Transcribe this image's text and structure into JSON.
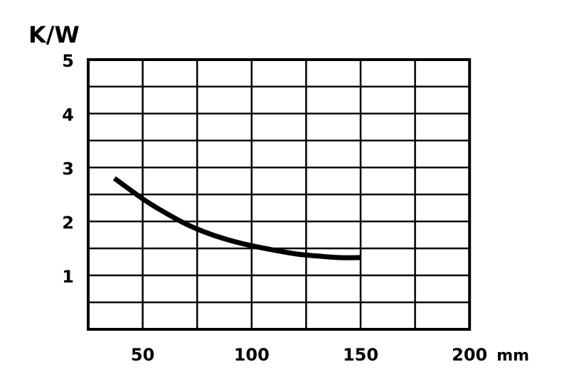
{
  "chart_data": {
    "type": "line",
    "title": "",
    "ylabel": "K/W",
    "xlabel": "",
    "x_unit": "mm",
    "xlim": [
      25,
      200
    ],
    "ylim": [
      0,
      5
    ],
    "x_ticks": [
      50,
      100,
      150,
      200
    ],
    "x_tick_labels": [
      "50",
      "100",
      "150",
      "200"
    ],
    "y_ticks": [
      1,
      2,
      3,
      4,
      5
    ],
    "y_tick_labels": [
      "1",
      "2",
      "3",
      "4",
      "5"
    ],
    "grid": true,
    "series": [
      {
        "color": "#000000",
        "x": [
          37,
          50,
          60,
          70,
          80,
          90,
          100,
          110,
          120,
          130,
          140,
          150
        ],
        "y": [
          2.8,
          2.42,
          2.17,
          1.95,
          1.78,
          1.65,
          1.55,
          1.47,
          1.4,
          1.36,
          1.33,
          1.33
        ]
      }
    ]
  }
}
